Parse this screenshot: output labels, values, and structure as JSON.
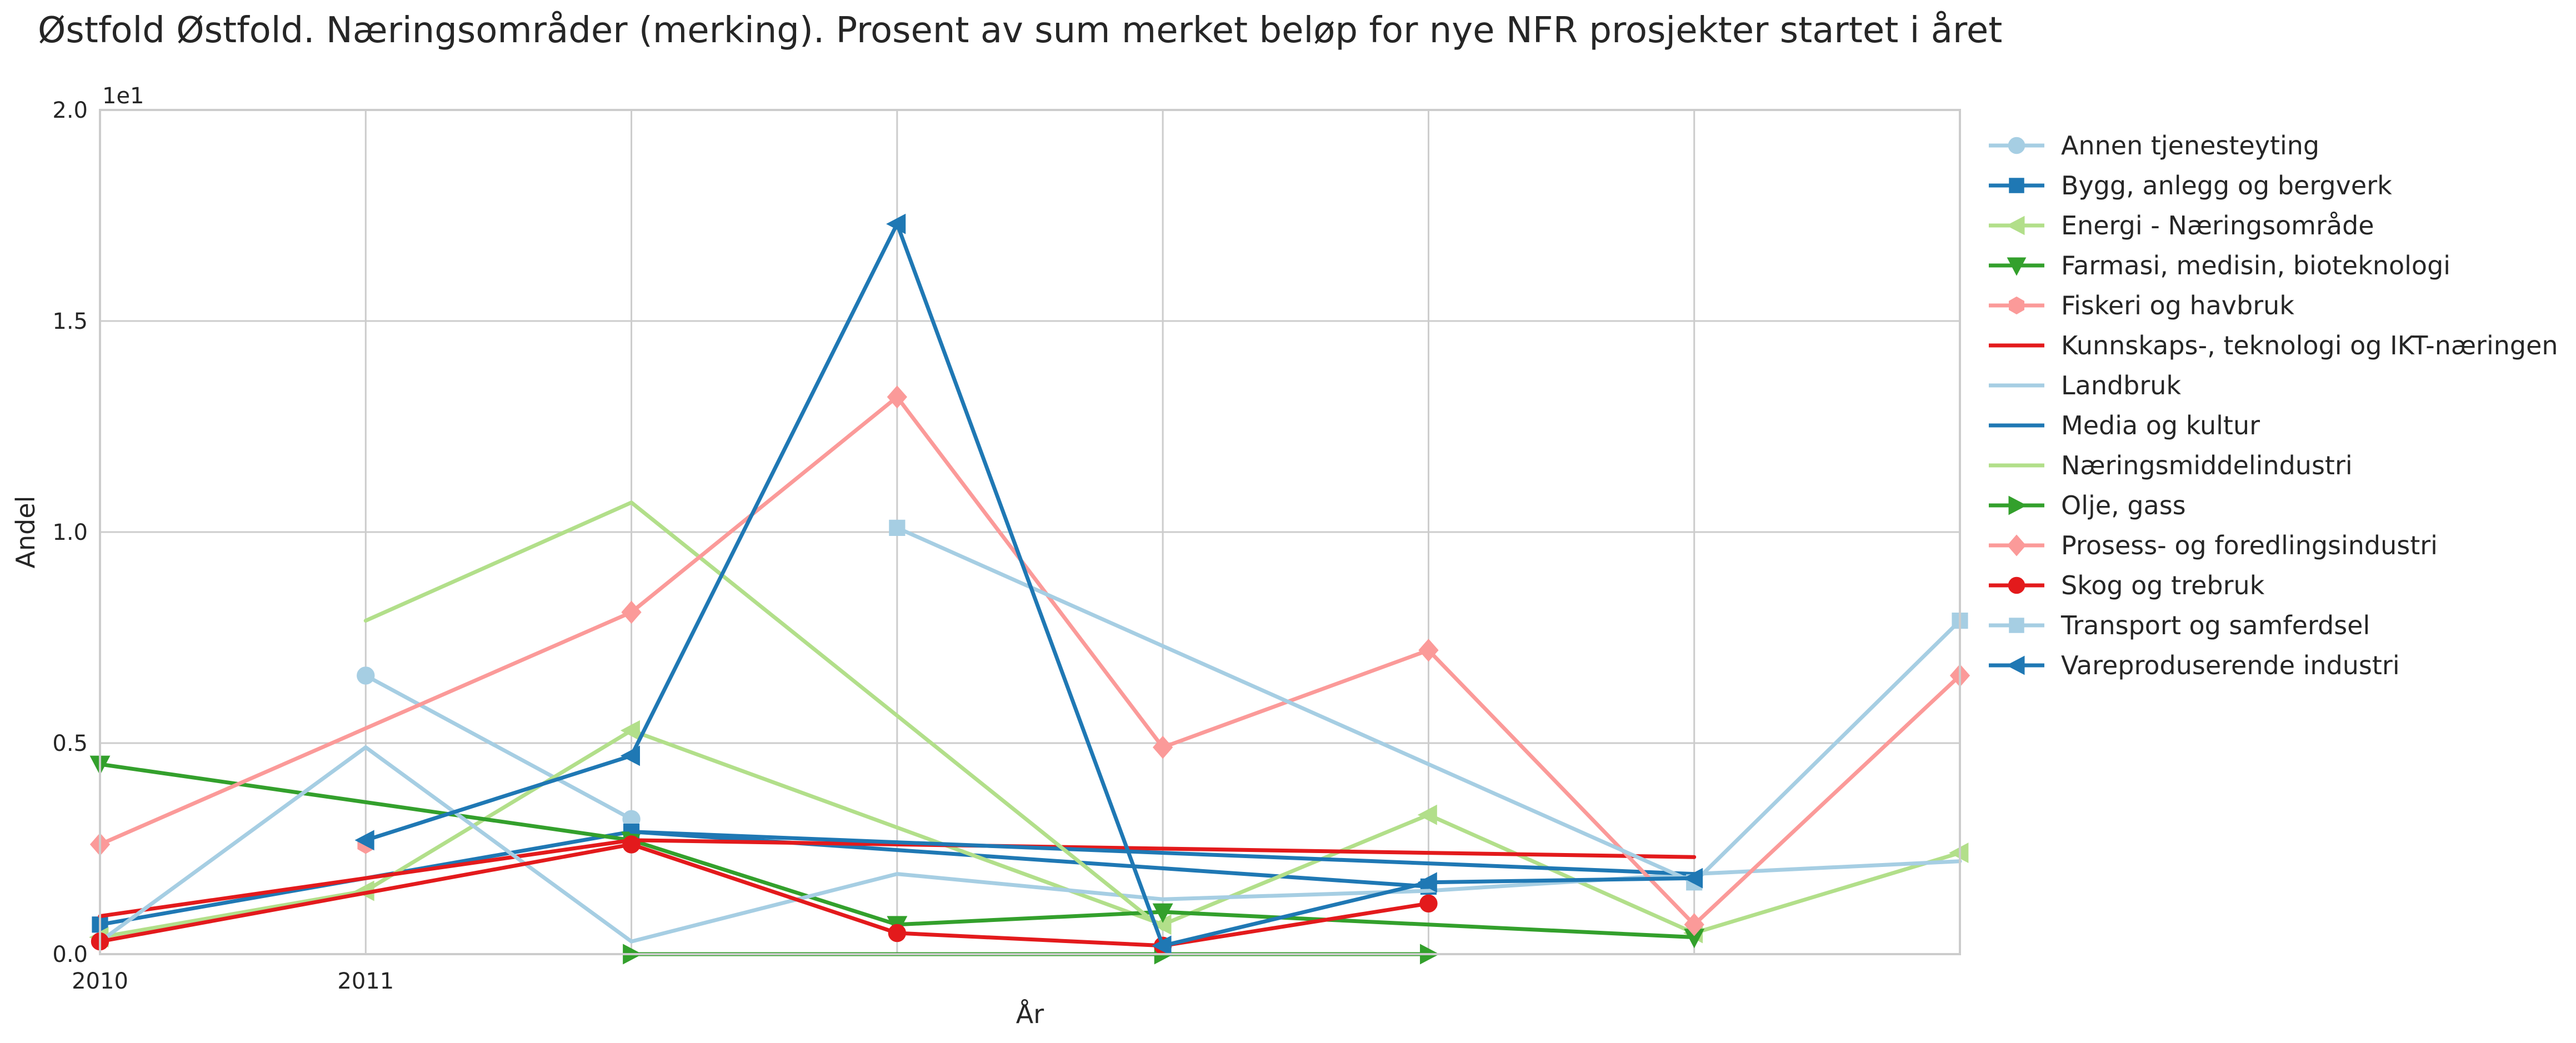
{
  "chart_data": {
    "type": "line",
    "title": "Østfold Østfold. Næringsområder (merking). Prosent av sum merket beløp for nye NFR prosjekter startet i året",
    "xlabel": "År",
    "ylabel": "Andel",
    "y_offset_text": "1e1",
    "x_tick_labels": [
      "2010",
      "2011"
    ],
    "y_tick_labels": [
      "0.0",
      "0.5",
      "1.0",
      "1.5",
      "2.0"
    ],
    "xlim": [
      2010,
      2017
    ],
    "ylim": [
      0,
      20
    ],
    "grid": true,
    "legend_position": "outside-right",
    "x": [
      2010,
      2011,
      2012,
      2013,
      2014,
      2015,
      2016,
      2017
    ],
    "series": [
      {
        "name": "Annen tjenesteyting",
        "color": "#a6cee3",
        "marker": "circle",
        "values": [
          null,
          6.6,
          3.2,
          null,
          null,
          null,
          null,
          null
        ]
      },
      {
        "name": "Bygg, anlegg og bergverk",
        "color": "#1f78b4",
        "marker": "square",
        "values": [
          0.7,
          null,
          2.9,
          null,
          null,
          1.6,
          null,
          null
        ]
      },
      {
        "name": "Energi - Næringsområde",
        "color": "#b2df8a",
        "marker": "triangle-left",
        "values": [
          0.4,
          1.5,
          5.3,
          null,
          0.7,
          3.3,
          0.5,
          2.4
        ]
      },
      {
        "name": "Farmasi, medisin, bioteknologi",
        "color": "#33a02c",
        "marker": "triangle-down",
        "values": [
          4.5,
          null,
          2.7,
          0.7,
          1.0,
          null,
          0.4,
          null
        ]
      },
      {
        "name": "Fiskeri og havbruk",
        "color": "#fb9a99",
        "marker": "hexagon",
        "values": [
          null,
          2.6,
          null,
          null,
          null,
          null,
          null,
          null
        ]
      },
      {
        "name": "Kunnskaps-, teknologi og IKT-næringen",
        "color": "#e31a1c",
        "marker": "none",
        "values": [
          0.9,
          null,
          2.7,
          null,
          null,
          null,
          2.3,
          null
        ]
      },
      {
        "name": "Landbruk",
        "color": "#a6cee3",
        "marker": "none",
        "values": [
          0.3,
          4.9,
          0.3,
          1.9,
          1.3,
          1.5,
          1.9,
          2.2
        ]
      },
      {
        "name": "Media og kultur",
        "color": "#1f78b4",
        "marker": "none",
        "values": [
          null,
          null,
          2.9,
          null,
          null,
          null,
          1.9,
          null
        ]
      },
      {
        "name": "Næringsmiddelindustri",
        "color": "#b2df8a",
        "marker": "none",
        "values": [
          null,
          7.9,
          10.7,
          null,
          0.6,
          null,
          null,
          null
        ]
      },
      {
        "name": "Olje, gass",
        "color": "#33a02c",
        "marker": "triangle-right",
        "values": [
          null,
          null,
          0.0,
          null,
          0.0,
          0.0,
          null,
          null
        ]
      },
      {
        "name": "Prosess- og foredlingsindustri",
        "color": "#fb9a99",
        "marker": "diamond",
        "values": [
          2.6,
          null,
          8.1,
          13.2,
          4.9,
          7.2,
          0.7,
          6.6
        ]
      },
      {
        "name": "Skog og trebruk",
        "color": "#e31a1c",
        "marker": "circle",
        "values": [
          0.3,
          null,
          2.6,
          0.5,
          0.2,
          1.2,
          null,
          null
        ]
      },
      {
        "name": "Transport og samferdsel",
        "color": "#a6cee3",
        "marker": "square",
        "values": [
          null,
          null,
          null,
          10.1,
          null,
          null,
          1.7,
          7.9
        ]
      },
      {
        "name": "Vareproduserende industri",
        "color": "#1f78b4",
        "marker": "triangle-left",
        "values": [
          null,
          2.7,
          4.7,
          17.3,
          0.2,
          1.7,
          1.8,
          null
        ]
      }
    ]
  }
}
